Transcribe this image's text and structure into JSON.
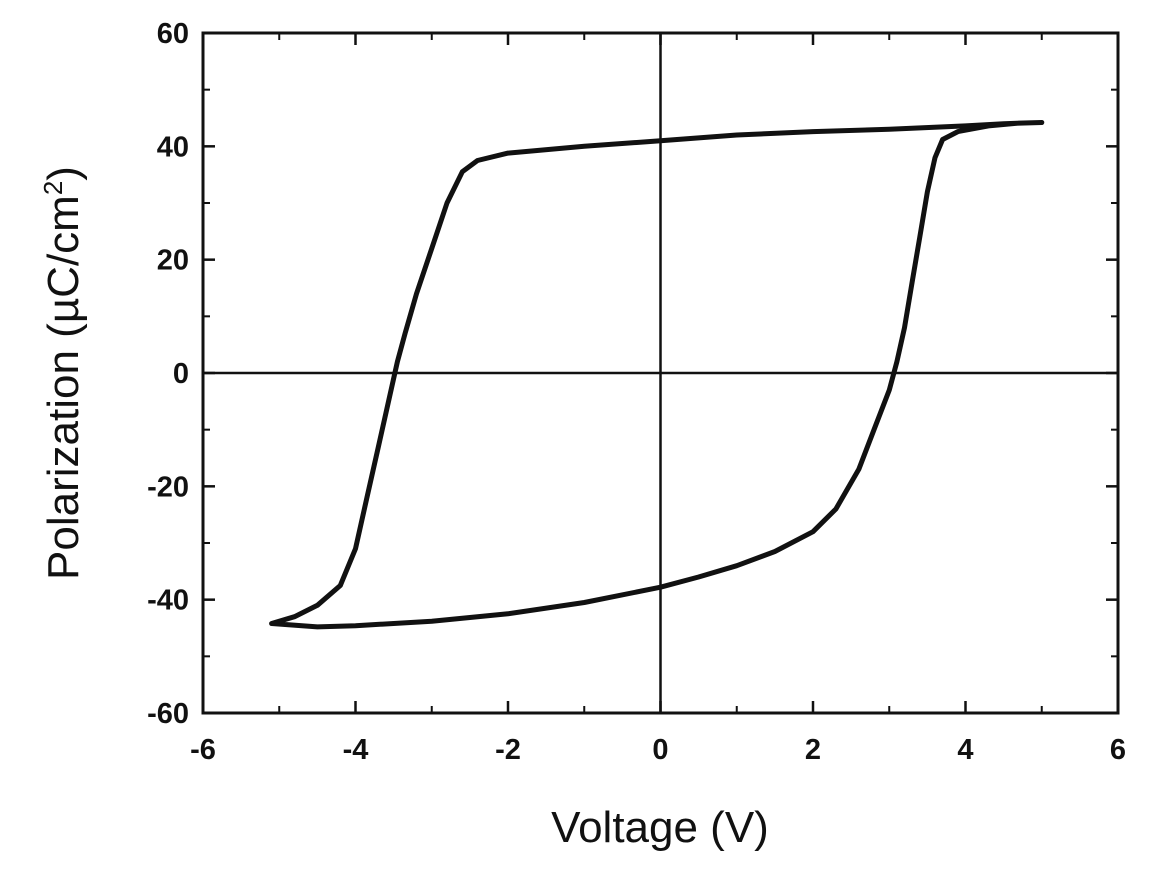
{
  "chart_data": {
    "type": "line",
    "xlabel": "Voltage (V)",
    "ylabel": "Polarization (µC/cm",
    "ylabel_superscript": "2",
    "ylabel_suffix": ")",
    "xlim": [
      -6,
      6
    ],
    "ylim": [
      -60,
      60
    ],
    "x_ticks": [
      -6,
      -4,
      -2,
      0,
      2,
      4,
      6
    ],
    "y_ticks": [
      -60,
      -40,
      -20,
      0,
      20,
      40,
      60
    ],
    "x_tick_labels": [
      "-6",
      "-4",
      "-2",
      "0",
      "2",
      "4",
      "6"
    ],
    "y_tick_labels": [
      "-60",
      "-40",
      "-20",
      "0",
      "20",
      "40",
      "60"
    ],
    "grid": false,
    "zero_lines": true,
    "line_color": "#111111",
    "series": [
      {
        "points": [
          [
            5.0,
            44.2
          ],
          [
            4.5,
            44.0
          ],
          [
            4.0,
            43.6
          ],
          [
            3.0,
            43.0
          ],
          [
            2.0,
            42.6
          ],
          [
            1.0,
            42.0
          ],
          [
            0.0,
            41.0
          ],
          [
            -1.0,
            40.0
          ],
          [
            -2.0,
            38.8
          ],
          [
            -2.4,
            37.5
          ],
          [
            -2.6,
            35.5
          ],
          [
            -2.8,
            30.0
          ],
          [
            -3.0,
            22.0
          ],
          [
            -3.2,
            14.0
          ],
          [
            -3.35,
            7.0
          ],
          [
            -3.45,
            2.0
          ],
          [
            -3.55,
            -4.0
          ],
          [
            -3.7,
            -13.0
          ],
          [
            -3.85,
            -22.0
          ],
          [
            -4.0,
            -31.0
          ],
          [
            -4.2,
            -37.5
          ],
          [
            -4.5,
            -41.0
          ],
          [
            -4.8,
            -43.0
          ],
          [
            -5.1,
            -44.2
          ],
          [
            -4.5,
            -44.8
          ],
          [
            -4.0,
            -44.6
          ],
          [
            -3.0,
            -43.8
          ],
          [
            -2.0,
            -42.5
          ],
          [
            -1.0,
            -40.5
          ],
          [
            0.0,
            -37.8
          ],
          [
            0.5,
            -36.0
          ],
          [
            1.0,
            -34.0
          ],
          [
            1.5,
            -31.5
          ],
          [
            2.0,
            -28.0
          ],
          [
            2.3,
            -24.0
          ],
          [
            2.6,
            -17.0
          ],
          [
            2.8,
            -10.0
          ],
          [
            3.0,
            -3.0
          ],
          [
            3.1,
            2.0
          ],
          [
            3.2,
            8.0
          ],
          [
            3.3,
            16.0
          ],
          [
            3.4,
            24.0
          ],
          [
            3.5,
            32.0
          ],
          [
            3.6,
            38.0
          ],
          [
            3.7,
            41.2
          ],
          [
            3.9,
            42.6
          ],
          [
            4.3,
            43.6
          ],
          [
            4.7,
            44.1
          ],
          [
            5.0,
            44.2
          ]
        ]
      }
    ]
  }
}
